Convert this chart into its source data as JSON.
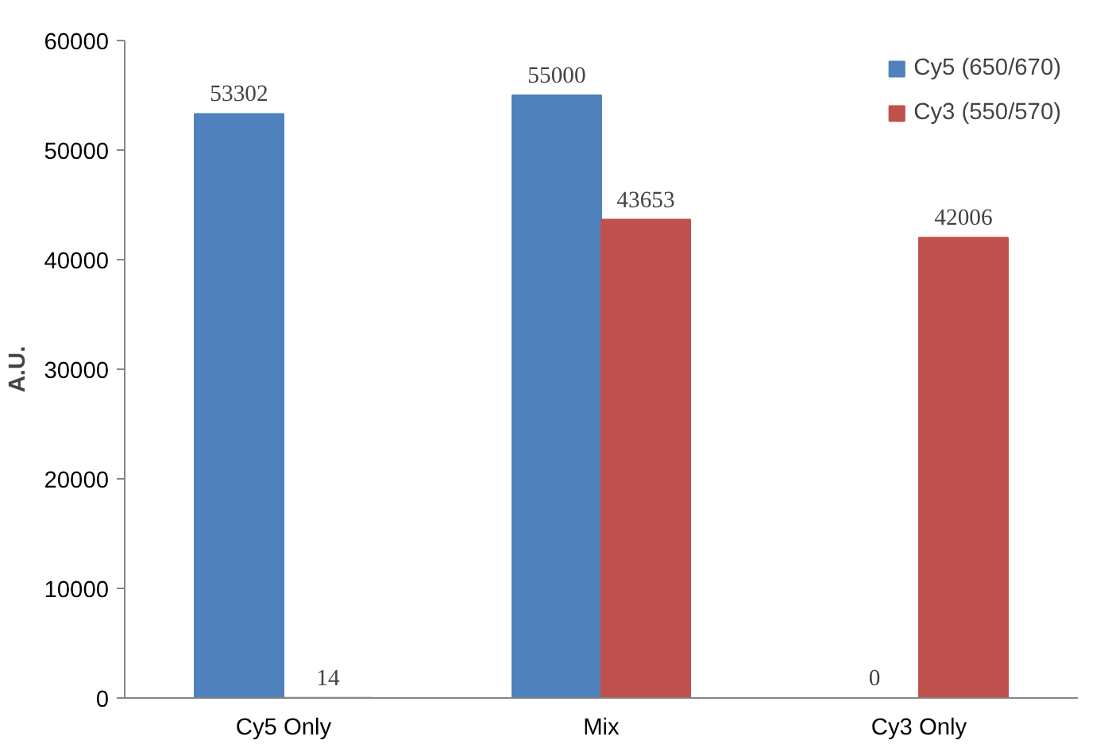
{
  "chart_data": {
    "type": "bar",
    "ylabel": "A.U.",
    "categories": [
      "Cy5 Only",
      "Mix",
      "Cy3 Only"
    ],
    "series": [
      {
        "name": "Cy5 (650/670)",
        "color": "#4f81bd",
        "values": [
          53302,
          55000,
          0
        ]
      },
      {
        "name": "Cy3 (550/570)",
        "color": "#c0504d",
        "values": [
          14,
          43653,
          42006
        ]
      }
    ],
    "ylim": [
      0,
      60000
    ],
    "yticks": [
      0,
      10000,
      20000,
      30000,
      40000,
      50000,
      60000
    ],
    "grid": false,
    "legend": "top right",
    "data_labels": true
  }
}
